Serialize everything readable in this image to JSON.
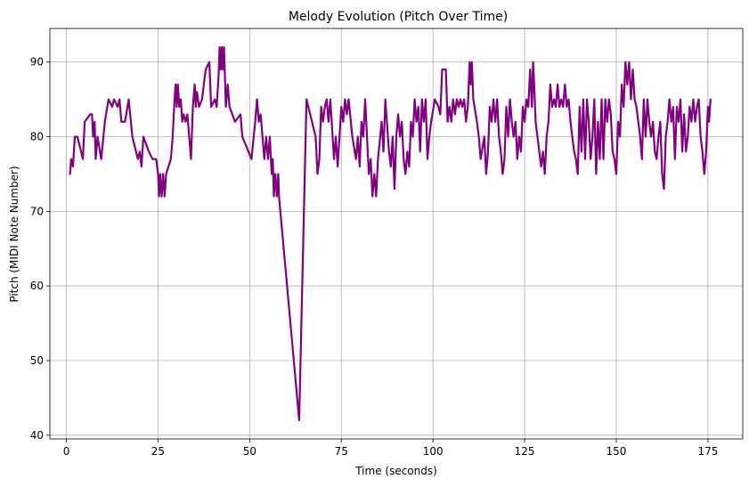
{
  "chart_data": {
    "type": "line",
    "title": "Melody Evolution (Pitch Over Time)",
    "xlabel": "Time (seconds)",
    "ylabel": "Pitch (MIDI Note Number)",
    "xlim": [
      -4.5,
      184.5
    ],
    "ylim": [
      39.5,
      94.5
    ],
    "xticks": [
      0,
      25,
      50,
      75,
      100,
      125,
      150,
      175
    ],
    "yticks": [
      40,
      50,
      60,
      70,
      80,
      90
    ],
    "grid": true,
    "line_color": "#800080",
    "series": [
      {
        "points": [
          [
            1,
            75
          ],
          [
            1.3,
            77
          ],
          [
            1.8,
            76
          ],
          [
            2.3,
            80
          ],
          [
            3,
            80
          ],
          [
            4.5,
            77
          ],
          [
            5,
            82
          ],
          [
            6.5,
            83
          ],
          [
            7,
            83
          ],
          [
            7.3,
            80
          ],
          [
            7.7,
            82
          ],
          [
            8,
            77
          ],
          [
            8.5,
            80
          ],
          [
            9.5,
            77
          ],
          [
            10.5,
            82
          ],
          [
            11.5,
            85
          ],
          [
            12.5,
            84
          ],
          [
            13,
            85
          ],
          [
            14,
            84
          ],
          [
            14.5,
            85
          ],
          [
            15,
            82
          ],
          [
            16,
            82
          ],
          [
            17,
            85
          ],
          [
            18,
            80
          ],
          [
            19.5,
            77
          ],
          [
            20,
            78
          ],
          [
            20.5,
            76
          ],
          [
            21,
            80
          ],
          [
            22.5,
            78
          ],
          [
            23.5,
            77
          ],
          [
            24.5,
            77
          ],
          [
            25,
            75
          ],
          [
            25.3,
            72
          ],
          [
            25.6,
            75
          ],
          [
            26,
            72
          ],
          [
            26.4,
            75
          ],
          [
            26.8,
            72
          ],
          [
            27.2,
            75
          ],
          [
            28.5,
            77
          ],
          [
            29,
            80
          ],
          [
            29.5,
            85
          ],
          [
            29.8,
            87
          ],
          [
            30.1,
            84
          ],
          [
            30.4,
            87
          ],
          [
            30.8,
            84
          ],
          [
            31.2,
            85
          ],
          [
            31.6,
            82
          ],
          [
            32,
            83
          ],
          [
            32.5,
            82
          ],
          [
            33,
            83
          ],
          [
            34,
            77
          ],
          [
            34.5,
            84
          ],
          [
            35,
            87
          ],
          [
            35.3,
            84
          ],
          [
            35.6,
            86
          ],
          [
            36.2,
            84
          ],
          [
            37,
            85
          ],
          [
            38,
            89
          ],
          [
            39,
            90
          ],
          [
            39.5,
            84
          ],
          [
            40.5,
            85
          ],
          [
            41,
            84
          ],
          [
            41.5,
            88
          ],
          [
            41.8,
            92
          ],
          [
            42.1,
            89
          ],
          [
            42.4,
            92
          ],
          [
            42.7,
            89
          ],
          [
            43,
            92
          ],
          [
            43.5,
            84
          ],
          [
            44,
            87
          ],
          [
            44.5,
            84
          ],
          [
            46,
            82
          ],
          [
            47.5,
            83
          ],
          [
            48,
            80
          ],
          [
            50.5,
            77
          ],
          [
            51.5,
            82
          ],
          [
            52,
            85
          ],
          [
            52.5,
            82
          ],
          [
            53,
            83
          ],
          [
            53.5,
            80
          ],
          [
            54,
            77
          ],
          [
            54.5,
            80
          ],
          [
            55,
            77
          ],
          [
            55.5,
            80
          ],
          [
            56,
            75
          ],
          [
            56.3,
            77
          ],
          [
            56.6,
            72
          ],
          [
            57,
            75
          ],
          [
            57.4,
            72
          ],
          [
            57.8,
            75
          ],
          [
            58,
            72
          ],
          [
            63.5,
            42
          ],
          [
            65.5,
            85
          ],
          [
            67,
            82
          ],
          [
            68,
            80
          ],
          [
            68.5,
            75
          ],
          [
            69,
            77
          ],
          [
            69.5,
            84
          ],
          [
            70,
            82
          ],
          [
            70.5,
            84
          ],
          [
            71,
            85
          ],
          [
            71.5,
            82
          ],
          [
            72,
            85
          ],
          [
            73,
            77
          ],
          [
            73.5,
            80
          ],
          [
            74,
            76
          ],
          [
            74.5,
            80
          ],
          [
            75,
            84
          ],
          [
            75.5,
            82
          ],
          [
            76,
            85
          ],
          [
            76.5,
            83
          ],
          [
            77,
            85
          ],
          [
            78,
            80
          ],
          [
            79,
            77
          ],
          [
            79.5,
            80
          ],
          [
            80,
            76
          ],
          [
            80.5,
            82
          ],
          [
            81,
            80
          ],
          [
            81.5,
            85
          ],
          [
            82,
            80
          ],
          [
            82.5,
            75
          ],
          [
            83,
            77
          ],
          [
            83.5,
            72
          ],
          [
            84,
            75
          ],
          [
            84.5,
            72
          ],
          [
            85,
            77
          ],
          [
            86,
            82
          ],
          [
            86.5,
            78
          ],
          [
            87,
            85
          ],
          [
            88,
            78
          ],
          [
            88.5,
            76
          ],
          [
            89,
            80
          ],
          [
            89.5,
            73
          ],
          [
            90,
            80
          ],
          [
            90.5,
            83
          ],
          [
            91,
            80
          ],
          [
            91.5,
            82
          ],
          [
            92,
            77
          ],
          [
            92.5,
            75
          ],
          [
            93,
            78
          ],
          [
            93.5,
            76
          ],
          [
            94,
            82
          ],
          [
            94.5,
            80
          ],
          [
            95,
            85
          ],
          [
            95.5,
            82
          ],
          [
            96,
            84
          ],
          [
            96.5,
            78
          ],
          [
            97,
            85
          ],
          [
            97.5,
            82
          ],
          [
            98,
            85
          ],
          [
            98.5,
            77
          ],
          [
            99,
            80
          ],
          [
            99.5,
            82
          ],
          [
            100.5,
            85
          ],
          [
            101.5,
            84
          ],
          [
            102,
            83
          ],
          [
            102.5,
            89
          ],
          [
            103.5,
            89
          ],
          [
            104,
            82
          ],
          [
            104.5,
            84
          ],
          [
            105,
            82
          ],
          [
            105.5,
            85
          ],
          [
            106,
            83
          ],
          [
            106.5,
            85
          ],
          [
            107,
            84
          ],
          [
            107.5,
            85
          ],
          [
            108,
            84
          ],
          [
            108.5,
            85
          ],
          [
            109,
            82
          ],
          [
            109.5,
            84
          ],
          [
            110,
            90
          ],
          [
            110.3,
            87
          ],
          [
            110.6,
            90
          ],
          [
            111,
            85
          ],
          [
            112,
            82
          ],
          [
            112.5,
            80
          ],
          [
            113,
            77
          ],
          [
            114,
            80
          ],
          [
            114.5,
            75
          ],
          [
            115,
            78
          ],
          [
            115.5,
            84
          ],
          [
            116,
            82
          ],
          [
            116.5,
            85
          ],
          [
            117,
            82
          ],
          [
            117.5,
            85
          ],
          [
            118,
            80
          ],
          [
            118.5,
            78
          ],
          [
            119,
            75
          ],
          [
            119.5,
            77
          ],
          [
            120,
            84
          ],
          [
            120.5,
            80
          ],
          [
            121,
            85
          ],
          [
            121.5,
            82
          ],
          [
            122,
            80
          ],
          [
            122.5,
            82
          ],
          [
            123,
            77
          ],
          [
            123.5,
            80
          ],
          [
            124,
            78
          ],
          [
            124.5,
            84
          ],
          [
            125,
            82
          ],
          [
            125.5,
            85
          ],
          [
            126,
            84
          ],
          [
            126.5,
            89
          ],
          [
            127,
            84
          ],
          [
            127.3,
            90
          ],
          [
            127.6,
            87
          ],
          [
            128,
            82
          ],
          [
            128.5,
            80
          ],
          [
            129,
            78
          ],
          [
            129.5,
            76
          ],
          [
            130,
            78
          ],
          [
            130.5,
            75
          ],
          [
            131,
            80
          ],
          [
            131.5,
            82
          ],
          [
            132,
            87
          ],
          [
            132.5,
            84
          ],
          [
            133,
            85
          ],
          [
            133.5,
            84
          ],
          [
            134,
            87
          ],
          [
            134.5,
            84
          ],
          [
            135,
            85
          ],
          [
            135.5,
            84
          ],
          [
            136,
            87
          ],
          [
            136.5,
            84
          ],
          [
            137,
            85
          ],
          [
            137.5,
            82
          ],
          [
            138,
            80
          ],
          [
            138.5,
            78
          ],
          [
            139,
            77
          ],
          [
            139.5,
            75
          ],
          [
            140,
            84
          ],
          [
            140.5,
            78
          ],
          [
            141,
            85
          ],
          [
            141.5,
            77
          ],
          [
            142,
            85
          ],
          [
            142.5,
            82
          ],
          [
            143,
            77
          ],
          [
            143.5,
            80
          ],
          [
            144,
            85
          ],
          [
            144.5,
            75
          ],
          [
            145,
            82
          ],
          [
            145.5,
            77
          ],
          [
            146,
            85
          ],
          [
            146.5,
            77
          ],
          [
            147,
            85
          ],
          [
            147.5,
            82
          ],
          [
            148,
            85
          ],
          [
            148.5,
            83
          ],
          [
            149,
            78
          ],
          [
            149.5,
            77
          ],
          [
            150,
            75
          ],
          [
            150.5,
            82
          ],
          [
            151,
            80
          ],
          [
            151.5,
            87
          ],
          [
            152,
            84
          ],
          [
            152.5,
            90
          ],
          [
            153,
            87
          ],
          [
            153.5,
            90
          ],
          [
            154,
            85
          ],
          [
            154.5,
            89
          ],
          [
            155,
            85
          ],
          [
            155.5,
            84
          ],
          [
            156,
            82
          ],
          [
            156.5,
            80
          ],
          [
            157,
            77
          ],
          [
            157.5,
            85
          ],
          [
            158,
            80
          ],
          [
            158.5,
            85
          ],
          [
            159,
            82
          ],
          [
            159.5,
            80
          ],
          [
            160,
            82
          ],
          [
            160.5,
            78
          ],
          [
            161,
            77
          ],
          [
            161.5,
            80
          ],
          [
            162,
            82
          ],
          [
            162.5,
            75
          ],
          [
            163,
            73
          ],
          [
            163.5,
            80
          ],
          [
            164,
            82
          ],
          [
            164.5,
            85
          ],
          [
            165,
            82
          ],
          [
            165.5,
            84
          ],
          [
            166,
            77
          ],
          [
            166.5,
            84
          ],
          [
            167,
            82
          ],
          [
            167.5,
            85
          ],
          [
            168,
            78
          ],
          [
            168.5,
            83
          ],
          [
            169,
            78
          ],
          [
            169.5,
            80
          ],
          [
            170,
            84
          ],
          [
            170.5,
            82
          ],
          [
            171,
            85
          ],
          [
            171.5,
            82
          ],
          [
            172,
            84
          ],
          [
            172.5,
            85
          ],
          [
            173,
            80
          ],
          [
            173.5,
            78
          ],
          [
            174,
            75
          ],
          [
            174.5,
            78
          ],
          [
            175,
            84
          ],
          [
            175.3,
            82
          ],
          [
            175.7,
            85
          ]
        ]
      }
    ]
  }
}
